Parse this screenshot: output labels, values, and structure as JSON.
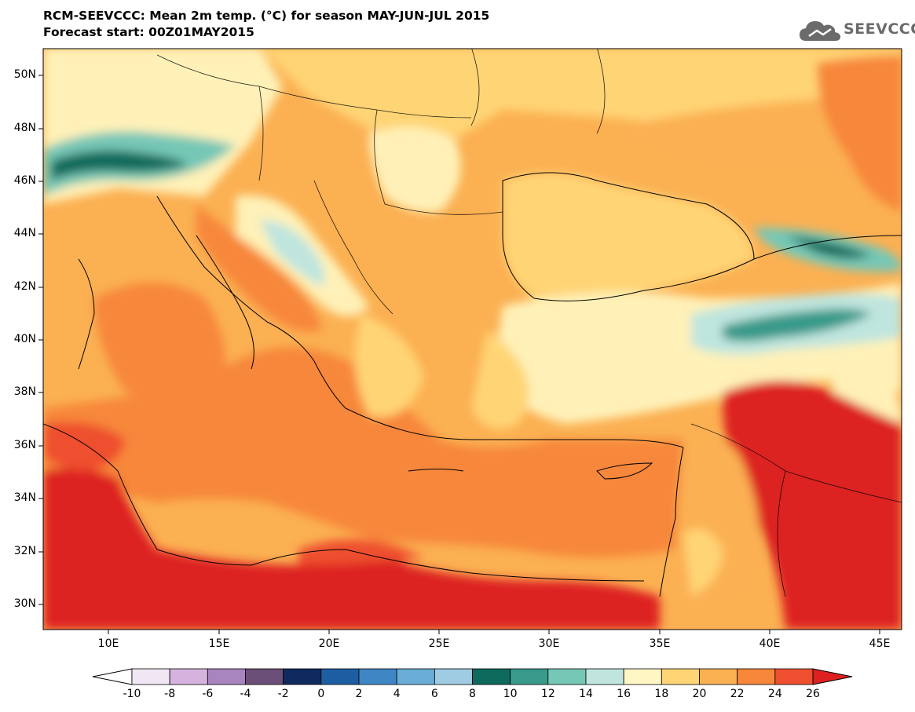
{
  "header": {
    "title_line1": "RCM-SEEVCCC: Mean 2m temp. (°C) for season MAY-JUN-JUL 2015",
    "title_line2": "Forecast start: 00Z01MAY2015"
  },
  "logo": {
    "text": "SEEVCCC",
    "icon": "cloud-icon"
  },
  "map": {
    "lat_labels": [
      "50N",
      "48N",
      "46N",
      "44N",
      "42N",
      "40N",
      "38N",
      "36N",
      "34N",
      "32N",
      "30N"
    ],
    "lon_labels": [
      "10E",
      "15E",
      "20E",
      "25E",
      "30E",
      "35E",
      "40E",
      "45E"
    ],
    "land_color": "#f9a04c",
    "sea_color": "#f78a3e"
  },
  "colorbar": {
    "labels": [
      "-10",
      "-8",
      "-6",
      "-4",
      "-2",
      "0",
      "2",
      "4",
      "6",
      "8",
      "10",
      "12",
      "14",
      "16",
      "18",
      "20",
      "22",
      "24",
      "26"
    ],
    "colors": [
      "#ffffff",
      "#f1e6f4",
      "#d6b3df",
      "#a985c0",
      "#6b4f78",
      "#0f2a5e",
      "#1d5ea2",
      "#3f86c5",
      "#6aaed8",
      "#9fcbe3",
      "#0d6a5c",
      "#379a8a",
      "#77c7b6",
      "#bfe5de",
      "#fff6c4",
      "#ffd474",
      "#fbb052",
      "#f7873a",
      "#ee4f2f",
      "#dd2020"
    ]
  }
}
